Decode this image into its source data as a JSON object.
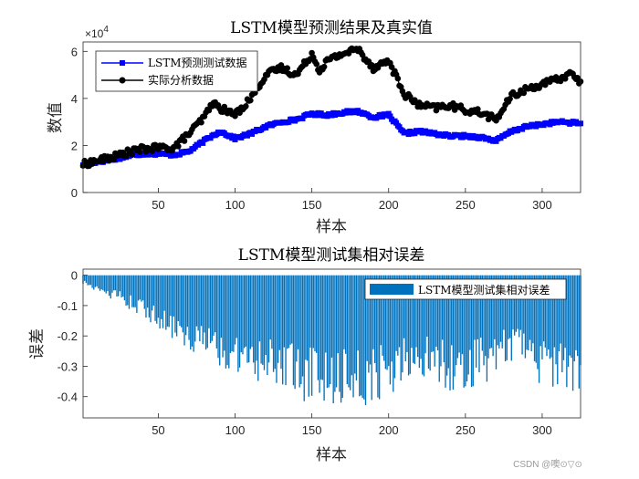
{
  "chart_data": [
    {
      "type": "line",
      "title": "LSTM模型预测结果及真实值",
      "xlabel": "样本",
      "ylabel": "数值",
      "y_exponent_label": "×10",
      "y_exponent_power": "4",
      "xlim": [
        1,
        325
      ],
      "ylim": [
        0,
        6.4
      ],
      "x_ticks": [
        50,
        100,
        150,
        200,
        250,
        300
      ],
      "y_ticks": [
        0,
        2,
        4,
        6
      ],
      "legend_position": "top-left",
      "series": [
        {
          "name": "LSTM预测测试数据",
          "color": "#0000ff",
          "marker": "square",
          "keypoints_x": [
            1,
            10,
            20,
            30,
            40,
            50,
            60,
            70,
            80,
            90,
            100,
            110,
            120,
            130,
            140,
            150,
            160,
            170,
            180,
            190,
            200,
            210,
            220,
            230,
            240,
            250,
            260,
            270,
            280,
            290,
            300,
            310,
            325
          ],
          "keypoints_y": [
            1.2,
            1.3,
            1.4,
            1.55,
            1.65,
            1.65,
            1.6,
            1.75,
            2.2,
            2.6,
            2.3,
            2.5,
            2.8,
            3.0,
            3.1,
            3.35,
            3.3,
            3.4,
            3.45,
            3.2,
            3.3,
            2.5,
            2.6,
            2.5,
            2.4,
            2.4,
            2.35,
            2.2,
            2.6,
            2.8,
            2.9,
            3.0,
            2.95
          ]
        },
        {
          "name": "实际分析数据",
          "color": "#000000",
          "marker": "circle",
          "keypoints_x": [
            1,
            10,
            20,
            30,
            40,
            50,
            60,
            70,
            80,
            85,
            90,
            100,
            110,
            120,
            130,
            140,
            150,
            155,
            160,
            170,
            180,
            190,
            200,
            210,
            220,
            230,
            240,
            250,
            260,
            270,
            280,
            290,
            300,
            310,
            320,
            325
          ],
          "keypoints_y": [
            1.2,
            1.35,
            1.5,
            1.7,
            1.85,
            1.9,
            1.9,
            2.5,
            3.2,
            3.8,
            3.6,
            3.3,
            4.0,
            5.0,
            5.3,
            5.0,
            5.9,
            5.2,
            5.6,
            5.9,
            6.1,
            5.3,
            5.6,
            4.2,
            3.7,
            3.6,
            3.7,
            3.5,
            3.4,
            3.1,
            4.1,
            4.4,
            4.6,
            4.8,
            5.1,
            4.6
          ]
        }
      ]
    },
    {
      "type": "bar",
      "title": "LSTM模型测试集相对误差",
      "xlabel": "样本",
      "ylabel": "误差",
      "xlim": [
        1,
        325
      ],
      "ylim": [
        -0.47,
        0.02
      ],
      "x_ticks": [
        50,
        100,
        150,
        200,
        250,
        300
      ],
      "y_ticks": [
        0,
        -0.1,
        -0.2,
        -0.3,
        -0.4
      ],
      "legend_position": "top-right",
      "series": [
        {
          "name": "LSTM模型测试集相对误差",
          "color": "#0072bd",
          "envelope_x": [
            1,
            20,
            40,
            60,
            80,
            100,
            120,
            140,
            150,
            160,
            180,
            200,
            220,
            240,
            260,
            280,
            300,
            325
          ],
          "envelope_y": [
            -0.03,
            -0.08,
            -0.14,
            -0.21,
            -0.29,
            -0.32,
            -0.36,
            -0.41,
            -0.43,
            -0.42,
            -0.44,
            -0.4,
            -0.35,
            -0.38,
            -0.37,
            -0.31,
            -0.36,
            -0.39
          ]
        }
      ]
    }
  ],
  "watermark": "CSDN @噢⊙▽⊙"
}
